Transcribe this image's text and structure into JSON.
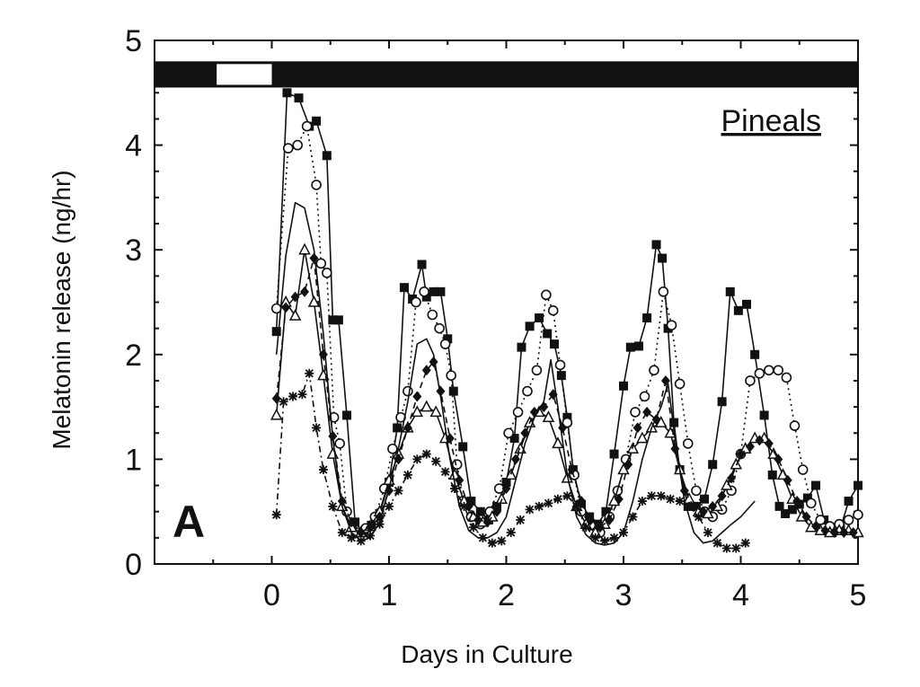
{
  "chart_data": {
    "type": "line",
    "panel_label": "A",
    "annotation": "Pineals",
    "xlabel": "Days in Culture",
    "ylabel": "Melatonin release (ng/hr)",
    "xlim": [
      -1,
      5
    ],
    "ylim": [
      0,
      5
    ],
    "xticks": [
      0,
      1,
      2,
      3,
      4,
      5
    ],
    "yticks": [
      0,
      1,
      2,
      3,
      4,
      5
    ],
    "grid": false,
    "light_bar": {
      "y_range": [
        4.55,
        4.8
      ],
      "light_interval": [
        -0.47,
        0.0
      ],
      "x_range": [
        -1,
        5
      ]
    },
    "series": [
      {
        "marker": "filled-square",
        "line": "solid",
        "x": [
          0.04,
          0.13,
          0.23,
          0.32,
          0.38,
          0.47,
          0.52,
          0.57,
          0.64,
          0.71,
          0.78,
          0.85,
          0.92,
          1.0,
          1.07,
          1.13,
          1.2,
          1.28,
          1.32,
          1.38,
          1.44,
          1.5,
          1.55,
          1.63,
          1.7,
          1.78,
          1.85,
          1.92,
          2.0,
          2.07,
          2.13,
          2.2,
          2.28,
          2.35,
          2.41,
          2.47,
          2.52,
          2.57,
          2.64,
          2.71,
          2.78,
          2.85,
          2.92,
          3.0,
          3.06,
          3.13,
          3.2,
          3.28,
          3.33,
          3.38,
          3.43,
          3.48,
          3.55,
          3.62,
          3.69,
          3.76,
          3.84,
          3.91,
          3.98,
          4.05,
          4.12,
          4.2,
          4.27,
          4.33,
          4.38,
          4.44,
          4.5,
          4.57,
          4.64,
          4.71,
          4.78,
          4.85,
          4.92,
          5.0
        ],
        "y": [
          2.22,
          4.5,
          4.45,
          4.18,
          4.23,
          3.9,
          2.33,
          2.33,
          1.42,
          0.4,
          0.3,
          0.37,
          0.48,
          0.78,
          1.3,
          2.64,
          2.53,
          2.86,
          2.55,
          2.6,
          2.6,
          2.15,
          1.65,
          1.12,
          0.6,
          0.5,
          0.42,
          0.55,
          0.78,
          1.2,
          2.07,
          2.27,
          2.35,
          2.2,
          2.1,
          1.8,
          1.4,
          0.9,
          0.57,
          0.45,
          0.38,
          0.5,
          1.05,
          1.7,
          2.07,
          2.08,
          2.35,
          3.05,
          2.92,
          2.25,
          1.35,
          0.9,
          0.55,
          0.55,
          0.62,
          0.95,
          1.55,
          2.6,
          2.42,
          2.48,
          2.0,
          1.42,
          0.85,
          0.55,
          0.48,
          0.52,
          0.57,
          0.63,
          0.75,
          0.42,
          0.3,
          0.34,
          0.6,
          0.75
        ]
      },
      {
        "marker": "open-circle",
        "line": "dotted",
        "x": [
          0.04,
          0.14,
          0.22,
          0.3,
          0.38,
          0.42,
          0.47,
          0.53,
          0.58,
          0.64,
          0.72,
          0.8,
          0.88,
          0.96,
          1.03,
          1.1,
          1.16,
          1.23,
          1.3,
          1.37,
          1.43,
          1.48,
          1.53,
          1.58,
          1.63,
          1.7,
          1.78,
          1.86,
          1.94,
          2.02,
          2.1,
          2.18,
          2.26,
          2.34,
          2.4,
          2.46,
          2.52,
          2.58,
          2.64,
          2.72,
          2.8,
          2.88,
          2.95,
          3.02,
          3.1,
          3.18,
          3.26,
          3.34,
          3.41,
          3.48,
          3.55,
          3.62,
          3.69,
          3.76,
          3.84,
          3.92,
          4.0,
          4.08,
          4.16,
          4.24,
          4.32,
          4.39,
          4.46,
          4.53,
          4.6,
          4.68,
          4.76,
          4.84,
          4.92,
          5.0
        ],
        "y": [
          2.44,
          3.97,
          4.0,
          4.18,
          3.62,
          2.87,
          2.78,
          1.4,
          1.15,
          0.5,
          0.3,
          0.34,
          0.45,
          0.72,
          1.1,
          1.4,
          1.65,
          2.5,
          2.6,
          2.38,
          2.25,
          2.1,
          1.8,
          0.95,
          0.6,
          0.45,
          0.38,
          0.5,
          0.72,
          1.25,
          1.45,
          1.65,
          1.85,
          2.57,
          2.42,
          1.9,
          1.35,
          0.85,
          0.5,
          0.37,
          0.3,
          0.45,
          0.7,
          1.0,
          1.45,
          1.6,
          1.85,
          2.6,
          2.28,
          1.72,
          1.15,
          0.7,
          0.5,
          0.45,
          0.52,
          0.7,
          1.05,
          1.75,
          1.82,
          1.85,
          1.85,
          1.78,
          1.32,
          0.9,
          0.58,
          0.42,
          0.36,
          0.38,
          0.42,
          0.47
        ]
      },
      {
        "marker": "open-triangle",
        "line": "solid",
        "x": [
          0.04,
          0.12,
          0.2,
          0.28,
          0.36,
          0.44,
          0.52,
          0.6,
          0.68,
          0.76,
          0.84,
          0.92,
          1.0,
          1.08,
          1.16,
          1.24,
          1.32,
          1.4,
          1.48,
          1.56,
          1.64,
          1.72,
          1.8,
          1.88,
          1.96,
          2.04,
          2.12,
          2.2,
          2.28,
          2.36,
          2.44,
          2.52,
          2.6,
          2.68,
          2.76,
          2.84,
          2.92,
          3.0,
          3.08,
          3.16,
          3.24,
          3.32,
          3.4,
          3.48,
          3.56,
          3.64,
          3.72,
          3.8,
          3.88,
          3.96,
          4.04,
          4.12,
          4.2,
          4.28,
          4.36,
          4.44,
          4.52,
          4.6,
          4.68,
          4.76,
          4.84,
          4.92,
          5.0
        ],
        "y": [
          1.42,
          2.5,
          2.37,
          3.0,
          2.5,
          1.8,
          1.05,
          0.55,
          0.35,
          0.3,
          0.36,
          0.5,
          0.8,
          1.05,
          1.3,
          1.45,
          1.5,
          1.45,
          1.2,
          0.85,
          0.6,
          0.45,
          0.4,
          0.45,
          0.62,
          0.85,
          1.1,
          1.35,
          1.45,
          1.4,
          1.15,
          0.82,
          0.55,
          0.38,
          0.3,
          0.38,
          0.6,
          0.9,
          1.1,
          1.2,
          1.3,
          1.35,
          1.25,
          0.9,
          0.62,
          0.5,
          0.48,
          0.55,
          0.75,
          0.95,
          1.1,
          1.2,
          1.2,
          1.05,
          0.85,
          0.62,
          0.45,
          0.35,
          0.32,
          0.3,
          0.32,
          0.32,
          0.3
        ]
      },
      {
        "marker": "filled-diamond",
        "line": "dashed",
        "x": [
          0.04,
          0.12,
          0.2,
          0.28,
          0.36,
          0.44,
          0.52,
          0.6,
          0.68,
          0.76,
          0.84,
          0.92,
          1.0,
          1.08,
          1.16,
          1.24,
          1.32,
          1.38,
          1.44,
          1.52,
          1.6,
          1.68,
          1.76,
          1.84,
          1.92,
          2.0,
          2.08,
          2.16,
          2.24,
          2.32,
          2.4,
          2.48,
          2.56,
          2.64,
          2.72,
          2.8,
          2.88,
          2.96,
          3.04,
          3.12,
          3.2,
          3.28,
          3.36,
          3.44,
          3.52,
          3.6,
          3.68,
          3.76,
          3.84,
          3.92,
          4.0,
          4.08,
          4.16,
          4.24,
          4.32,
          4.4,
          4.48,
          4.56,
          4.64,
          4.72,
          4.8,
          4.88,
          4.96
        ],
        "y": [
          1.58,
          2.45,
          2.55,
          2.6,
          2.92,
          2.0,
          1.22,
          0.6,
          0.4,
          0.3,
          0.35,
          0.45,
          0.7,
          1.0,
          1.3,
          1.6,
          1.85,
          1.93,
          1.65,
          1.2,
          0.8,
          0.55,
          0.42,
          0.4,
          0.5,
          0.72,
          1.0,
          1.25,
          1.45,
          1.5,
          1.62,
          1.3,
          0.9,
          0.6,
          0.42,
          0.35,
          0.42,
          0.62,
          0.95,
          1.3,
          1.45,
          1.38,
          1.75,
          1.1,
          0.7,
          0.55,
          0.5,
          0.55,
          0.65,
          0.82,
          1.05,
          1.12,
          1.18,
          1.15,
          1.0,
          0.8,
          0.6,
          0.45,
          0.36,
          0.32,
          0.3,
          0.3,
          0.3
        ]
      },
      {
        "marker": "asterisk",
        "line": "dash-dot",
        "x": [
          0.04,
          0.1,
          0.18,
          0.26,
          0.32,
          0.38,
          0.44,
          0.52,
          0.6,
          0.68,
          0.76,
          0.84,
          0.92,
          1.0,
          1.08,
          1.16,
          1.24,
          1.32,
          1.4,
          1.48,
          1.56,
          1.64,
          1.72,
          1.8,
          1.88,
          1.96,
          2.04,
          2.12,
          2.2,
          2.28,
          2.36,
          2.44,
          2.52,
          2.6,
          2.68,
          2.76,
          2.84,
          2.92,
          3.0,
          3.08,
          3.16,
          3.24,
          3.32,
          3.4,
          3.48,
          3.56,
          3.64,
          3.72,
          3.8,
          3.88,
          3.96,
          4.04
        ],
        "y": [
          0.47,
          1.55,
          1.6,
          1.62,
          1.82,
          1.3,
          0.9,
          0.55,
          0.3,
          0.25,
          0.22,
          0.27,
          0.38,
          0.55,
          0.7,
          0.85,
          1.0,
          1.05,
          0.98,
          0.88,
          0.72,
          0.55,
          0.35,
          0.25,
          0.2,
          0.22,
          0.3,
          0.42,
          0.52,
          0.55,
          0.58,
          0.62,
          0.65,
          0.55,
          0.35,
          0.25,
          0.22,
          0.25,
          0.3,
          0.45,
          0.6,
          0.65,
          0.65,
          0.62,
          0.6,
          0.55,
          0.45,
          0.3,
          0.2,
          0.15,
          0.15,
          0.2
        ]
      },
      {
        "marker": "none",
        "line": "solid",
        "x": [
          0.04,
          0.12,
          0.2,
          0.28,
          0.36,
          0.44,
          0.52,
          0.6,
          0.68,
          0.76,
          0.84,
          0.92,
          1.0,
          1.08,
          1.16,
          1.24,
          1.32,
          1.38,
          1.44,
          1.52,
          1.6,
          1.68,
          1.76,
          1.84,
          1.92,
          2.0,
          2.08,
          2.16,
          2.24,
          2.32,
          2.38,
          2.44,
          2.52,
          2.6,
          2.68,
          2.76,
          2.84,
          2.92,
          3.0,
          3.08,
          3.16,
          3.24,
          3.32,
          3.38,
          3.44,
          3.52,
          3.6,
          3.68,
          3.76,
          3.84,
          3.92,
          4.0,
          4.08,
          4.12
        ],
        "y": [
          2.0,
          2.95,
          3.45,
          3.4,
          3.0,
          2.2,
          1.2,
          0.55,
          0.3,
          0.22,
          0.25,
          0.4,
          0.72,
          1.1,
          1.55,
          2.1,
          2.15,
          2.0,
          1.6,
          1.0,
          0.55,
          0.32,
          0.25,
          0.25,
          0.3,
          0.45,
          0.8,
          1.15,
          1.4,
          1.55,
          1.95,
          1.5,
          0.85,
          0.45,
          0.28,
          0.2,
          0.18,
          0.2,
          0.3,
          0.6,
          1.0,
          1.3,
          1.5,
          1.72,
          1.2,
          0.6,
          0.3,
          0.2,
          0.22,
          0.3,
          0.38,
          0.45,
          0.55,
          0.6
        ]
      }
    ]
  }
}
